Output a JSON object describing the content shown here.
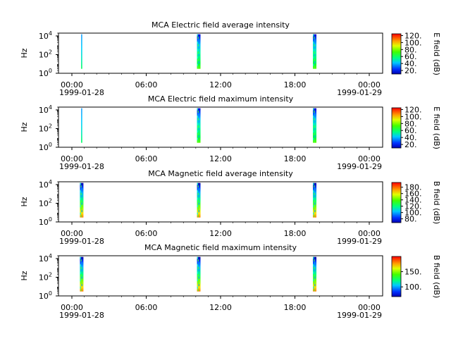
{
  "chart_data": [
    {
      "type": "heatmap",
      "title": "MCA  Electric field average intensity",
      "ylabel": "Hz",
      "y_scale": "log",
      "ylim": [
        1,
        20000
      ],
      "y_ticks": [
        {
          "base": "10",
          "exp": "0"
        },
        {
          "base": "10",
          "exp": "2"
        },
        {
          "base": "10",
          "exp": "4"
        }
      ],
      "x_ticks": [
        "00:00",
        "06:00",
        "12:00",
        "18:00",
        "00:00"
      ],
      "x_dates": [
        "1999-01-28",
        "1999-01-29"
      ],
      "colorbar": {
        "label": "E field (dB)",
        "range": [
          10,
          125
        ],
        "ticks": [
          "20.",
          "40.",
          "60.",
          "80.",
          "100.",
          "120."
        ]
      },
      "bursts": [
        {
          "time": "01:43",
          "freq_min": 3,
          "freq_max": 15000,
          "level": "low"
        },
        {
          "time": "10:23",
          "freq_min": 3,
          "freq_max": 15000,
          "level": "mid"
        },
        {
          "time": "18:58",
          "freq_min": 3,
          "freq_max": 15000,
          "level": "mid"
        }
      ]
    },
    {
      "type": "heatmap",
      "title": "MCA  Electric field maximum intensity",
      "ylabel": "Hz",
      "y_scale": "log",
      "ylim": [
        1,
        20000
      ],
      "y_ticks": [
        {
          "base": "10",
          "exp": "0"
        },
        {
          "base": "10",
          "exp": "2"
        },
        {
          "base": "10",
          "exp": "4"
        }
      ],
      "x_ticks": [
        "00:00",
        "06:00",
        "12:00",
        "18:00",
        "00:00"
      ],
      "x_dates": [
        "1999-01-28",
        "1999-01-29"
      ],
      "colorbar": {
        "label": "E field (dB)",
        "range": [
          10,
          125
        ],
        "ticks": [
          "20.",
          "40.",
          "60.",
          "80.",
          "100.",
          "120."
        ]
      },
      "bursts": [
        {
          "time": "01:43",
          "freq_min": 3,
          "freq_max": 15000,
          "level": "low"
        },
        {
          "time": "10:23",
          "freq_min": 3,
          "freq_max": 15000,
          "level": "mid"
        },
        {
          "time": "18:58",
          "freq_min": 3,
          "freq_max": 15000,
          "level": "mid"
        }
      ]
    },
    {
      "type": "heatmap",
      "title": "MCA  Magnetic field average intensity",
      "ylabel": "Hz",
      "y_scale": "log",
      "ylim": [
        1,
        20000
      ],
      "y_ticks": [
        {
          "base": "10",
          "exp": "0"
        },
        {
          "base": "10",
          "exp": "2"
        },
        {
          "base": "10",
          "exp": "4"
        }
      ],
      "x_ticks": [
        "00:00",
        "06:00",
        "12:00",
        "18:00",
        "00:00"
      ],
      "x_dates": [
        "1999-01-28",
        "1999-01-29"
      ],
      "colorbar": {
        "label": "B field (dB)",
        "range": [
          68,
          195
        ],
        "ticks": [
          "80.",
          "100.",
          "120.",
          "140.",
          "160.",
          "180."
        ]
      },
      "bursts": [
        {
          "time": "01:43",
          "freq_min": 3,
          "freq_max": 15000,
          "level": "high"
        },
        {
          "time": "10:23",
          "freq_min": 3,
          "freq_max": 15000,
          "level": "high"
        },
        {
          "time": "18:58",
          "freq_min": 3,
          "freq_max": 15000,
          "level": "high"
        }
      ]
    },
    {
      "type": "heatmap",
      "title": "MCA  Magnetic field maximum intensity",
      "ylabel": "Hz",
      "y_scale": "log",
      "ylim": [
        1,
        20000
      ],
      "y_ticks": [
        {
          "base": "10",
          "exp": "0"
        },
        {
          "base": "10",
          "exp": "2"
        },
        {
          "base": "10",
          "exp": "4"
        }
      ],
      "x_ticks": [
        "00:00",
        "06:00",
        "12:00",
        "18:00",
        "00:00"
      ],
      "x_dates": [
        "1999-01-28",
        "1999-01-29"
      ],
      "colorbar": {
        "label": "B field (dB)",
        "range": [
          68,
          200
        ],
        "ticks": [
          "100.",
          "150."
        ]
      },
      "bursts": [
        {
          "time": "01:43",
          "freq_min": 3,
          "freq_max": 15000,
          "level": "high"
        },
        {
          "time": "10:23",
          "freq_min": 3,
          "freq_max": 15000,
          "level": "high"
        },
        {
          "time": "18:58",
          "freq_min": 3,
          "freq_max": 15000,
          "level": "high"
        }
      ]
    }
  ]
}
